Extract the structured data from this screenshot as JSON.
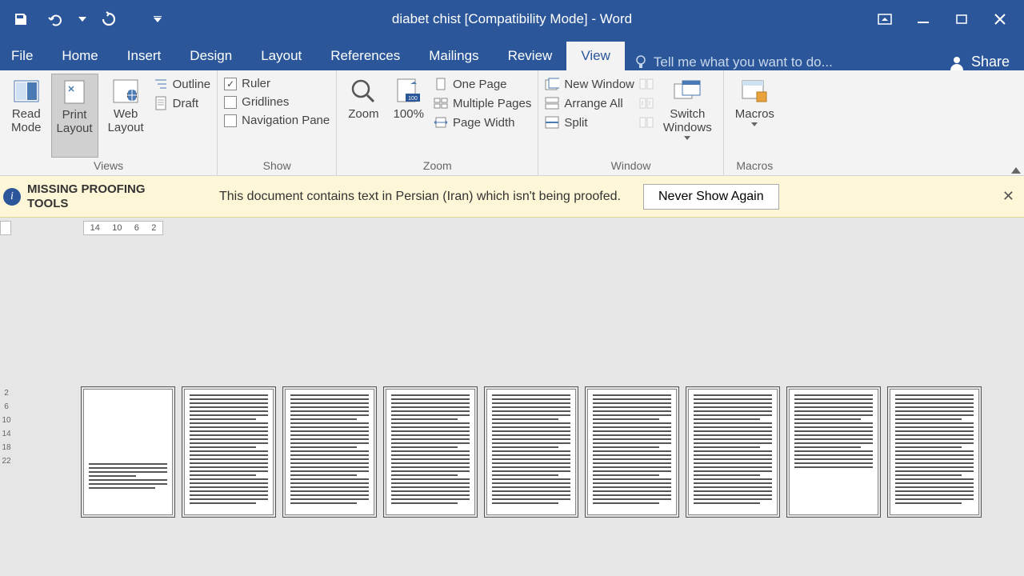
{
  "colors": {
    "primary": "#2b579a",
    "ribbon_bg": "#f3f3f3",
    "msgbar_bg": "#fdf6d7",
    "workspace_bg": "#e6e6e6"
  },
  "title": "diabet chist [Compatibility Mode] - Word",
  "tabs": {
    "file": "File",
    "home": "Home",
    "insert": "Insert",
    "design": "Design",
    "layout": "Layout",
    "references": "References",
    "mailings": "Mailings",
    "review": "Review",
    "view": "View"
  },
  "tellme_placeholder": "Tell me what you want to do...",
  "share_label": "Share",
  "ribbon": {
    "views": {
      "label": "Views",
      "read_mode": "Read\nMode",
      "print_layout": "Print\nLayout",
      "web_layout": "Web\nLayout",
      "outline": "Outline",
      "draft": "Draft"
    },
    "show": {
      "label": "Show",
      "ruler": "Ruler",
      "ruler_checked": true,
      "gridlines": "Gridlines",
      "gridlines_checked": false,
      "nav_pane": "Navigation Pane",
      "nav_checked": false
    },
    "zoom": {
      "label": "Zoom",
      "zoom": "Zoom",
      "hundred": "100%",
      "one_page": "One Page",
      "multi_pages": "Multiple Pages",
      "page_width": "Page Width"
    },
    "window": {
      "label": "Window",
      "new_window": "New Window",
      "arrange_all": "Arrange All",
      "split": "Split",
      "switch_windows": "Switch\nWindows"
    },
    "macros": {
      "label": "Macros",
      "macros": "Macros"
    }
  },
  "msgbar": {
    "title": "MISSING PROOFING TOOLS",
    "text": "This document contains text in Persian (Iran) which isn't being proofed.",
    "button": "Never Show Again"
  },
  "ruler_h": [
    "14",
    "10",
    "6",
    "2"
  ],
  "ruler_v": [
    "2",
    "6",
    "10",
    "14",
    "18",
    "22"
  ]
}
